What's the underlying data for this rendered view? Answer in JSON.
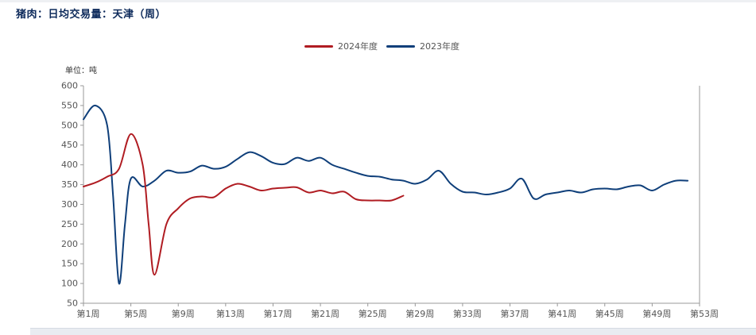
{
  "title": "猪肉：日均交易量：天津（周）",
  "unit_label": "单位：吨",
  "legend": [
    {
      "label": "2024年度",
      "color": "#b01c22"
    },
    {
      "label": "2023年度",
      "color": "#0f3f7a"
    }
  ],
  "chart_data": {
    "type": "line",
    "title": "猪肉：日均交易量：天津（周）",
    "ylabel": "单位：吨",
    "xlabel": "",
    "ylim": [
      50,
      600
    ],
    "y_ticks": [
      50,
      100,
      150,
      200,
      250,
      300,
      350,
      400,
      450,
      500,
      550,
      600
    ],
    "x_ticks": [
      "第1周",
      "第5周",
      "第9周",
      "第13周",
      "第17周",
      "第21周",
      "第25周",
      "第29周",
      "第33周",
      "第37周",
      "第41周",
      "第45周",
      "第49周",
      "第53周"
    ],
    "legend_position": "top-center",
    "grid": false,
    "series": [
      {
        "name": "2024年度",
        "color": "#b01c22",
        "x": [
          1,
          2,
          3,
          4,
          5,
          6,
          6.5,
          7,
          8,
          9,
          10,
          11,
          12,
          13,
          14,
          15,
          16,
          17,
          18,
          19,
          20,
          21,
          22,
          23,
          24,
          25,
          26,
          27,
          28
        ],
        "values": [
          345,
          355,
          370,
          390,
          478,
          400,
          250,
          122,
          250,
          290,
          315,
          320,
          318,
          340,
          352,
          345,
          335,
          340,
          342,
          343,
          330,
          335,
          328,
          332,
          313,
          310,
          310,
          310,
          322
        ]
      },
      {
        "name": "2023年度",
        "color": "#0f3f7a",
        "x": [
          1,
          2,
          3,
          3.5,
          4,
          4.5,
          5,
          6,
          7,
          8,
          9,
          10,
          11,
          12,
          13,
          14,
          15,
          16,
          17,
          18,
          19,
          20,
          21,
          22,
          23,
          24,
          25,
          26,
          27,
          28,
          29,
          30,
          31,
          32,
          33,
          34,
          35,
          36,
          37,
          38,
          39,
          40,
          41,
          42,
          43,
          44,
          45,
          46,
          47,
          48,
          49,
          50,
          51,
          52
        ],
        "values": [
          515,
          550,
          500,
          320,
          100,
          250,
          365,
          345,
          360,
          385,
          380,
          383,
          398,
          390,
          395,
          415,
          432,
          422,
          405,
          402,
          418,
          410,
          418,
          400,
          390,
          380,
          372,
          370,
          363,
          360,
          352,
          363,
          385,
          352,
          332,
          330,
          325,
          330,
          340,
          365,
          315,
          325,
          330,
          335,
          330,
          338,
          340,
          338,
          345,
          348,
          335,
          350,
          360,
          360
        ]
      }
    ]
  }
}
